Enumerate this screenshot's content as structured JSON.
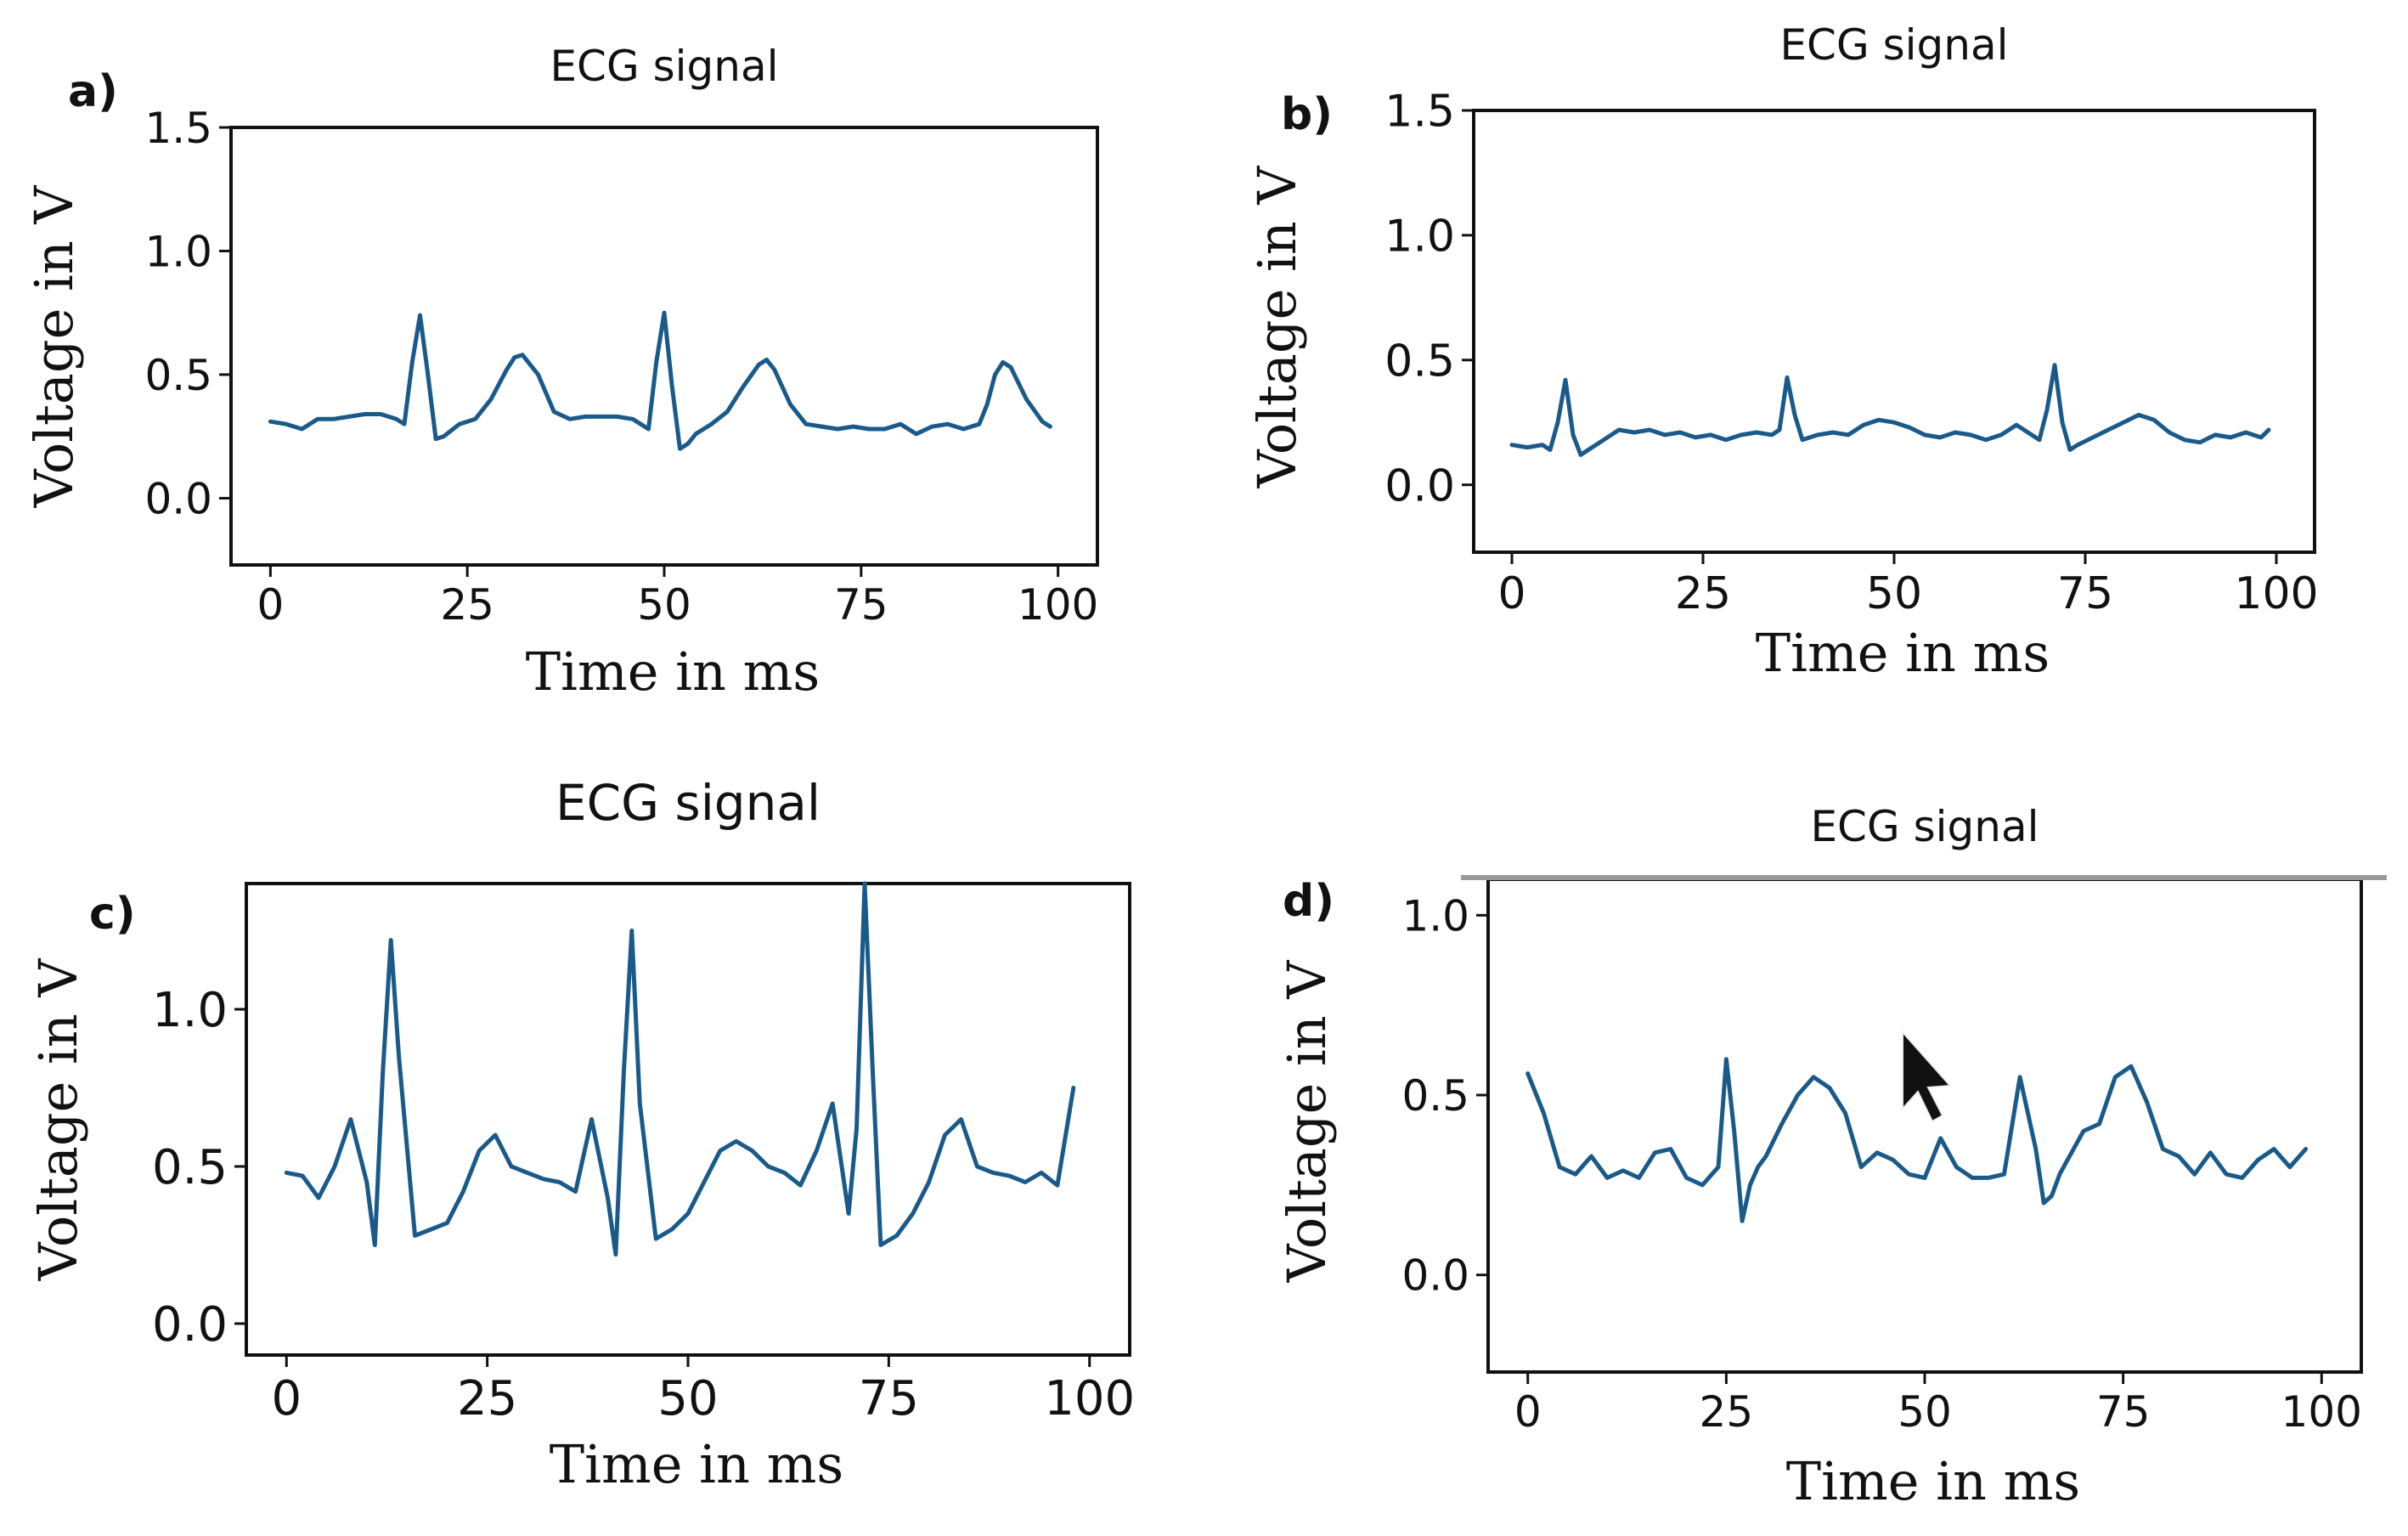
{
  "figure": {
    "background": "#ffffff",
    "line_color": "#1a5a8a"
  },
  "chart_data": [
    {
      "panel": "a)",
      "type": "line",
      "title": "ECG signal",
      "xlabel": "Time in ms",
      "ylabel": "Voltage in V",
      "xlim": [
        -5,
        105
      ],
      "ylim": [
        -0.27,
        1.5
      ],
      "xticks": [
        "0",
        "25",
        "50",
        "75",
        "100"
      ],
      "xtick_values": [
        0,
        25,
        50,
        75,
        100
      ],
      "yticks": [
        "0.0",
        "0.5",
        "1.0",
        "1.5"
      ],
      "ytick_values": [
        0.0,
        0.5,
        1.0,
        1.5
      ],
      "series": [
        {
          "name": "ECG",
          "x": [
            0,
            2,
            4,
            6,
            8,
            10,
            12,
            14,
            16,
            17,
            18,
            19,
            20,
            21,
            22,
            24,
            26,
            28,
            30,
            31,
            32,
            34,
            36,
            38,
            40,
            42,
            44,
            46,
            48,
            49,
            50,
            51,
            52,
            53,
            54,
            56,
            58,
            60,
            62,
            63,
            64,
            66,
            68,
            70,
            72,
            74,
            76,
            78,
            80,
            82,
            84,
            86,
            88,
            90,
            91,
            92,
            93,
            94,
            96,
            98,
            99
          ],
          "y": [
            0.31,
            0.3,
            0.28,
            0.32,
            0.32,
            0.33,
            0.34,
            0.34,
            0.32,
            0.3,
            0.55,
            0.74,
            0.5,
            0.24,
            0.25,
            0.3,
            0.32,
            0.4,
            0.52,
            0.57,
            0.58,
            0.5,
            0.35,
            0.32,
            0.33,
            0.33,
            0.33,
            0.32,
            0.28,
            0.55,
            0.75,
            0.45,
            0.2,
            0.22,
            0.26,
            0.3,
            0.35,
            0.45,
            0.54,
            0.56,
            0.52,
            0.38,
            0.3,
            0.29,
            0.28,
            0.29,
            0.28,
            0.28,
            0.3,
            0.26,
            0.29,
            0.3,
            0.28,
            0.3,
            0.38,
            0.5,
            0.55,
            0.53,
            0.4,
            0.31,
            0.29
          ]
        }
      ]
    },
    {
      "panel": "b)",
      "type": "line",
      "title": "ECG signal",
      "xlabel": "Time in ms",
      "ylabel": "Voltage in V",
      "xlim": [
        -5,
        105
      ],
      "ylim": [
        -0.27,
        1.5
      ],
      "xticks": [
        "0",
        "25",
        "50",
        "75",
        "100"
      ],
      "xtick_values": [
        0,
        25,
        50,
        75,
        100
      ],
      "yticks": [
        "0.0",
        "0.5",
        "1.0",
        "1.5"
      ],
      "ytick_values": [
        0.0,
        0.5,
        1.0,
        1.5
      ],
      "series": [
        {
          "name": "ECG",
          "x": [
            0,
            2,
            4,
            5,
            6,
            7,
            8,
            9,
            10,
            12,
            14,
            16,
            18,
            20,
            22,
            24,
            26,
            28,
            30,
            32,
            34,
            35,
            36,
            37,
            38,
            40,
            42,
            44,
            46,
            48,
            50,
            52,
            54,
            56,
            58,
            60,
            62,
            64,
            66,
            68,
            69,
            70,
            71,
            72,
            73,
            74,
            76,
            78,
            80,
            82,
            84,
            86,
            88,
            90,
            92,
            94,
            96,
            98,
            99
          ],
          "y": [
            0.16,
            0.15,
            0.16,
            0.14,
            0.25,
            0.42,
            0.2,
            0.12,
            0.14,
            0.18,
            0.22,
            0.21,
            0.22,
            0.2,
            0.21,
            0.19,
            0.2,
            0.18,
            0.2,
            0.21,
            0.2,
            0.22,
            0.43,
            0.28,
            0.18,
            0.2,
            0.21,
            0.2,
            0.24,
            0.26,
            0.25,
            0.23,
            0.2,
            0.19,
            0.21,
            0.2,
            0.18,
            0.2,
            0.24,
            0.2,
            0.18,
            0.3,
            0.48,
            0.25,
            0.14,
            0.16,
            0.19,
            0.22,
            0.25,
            0.28,
            0.26,
            0.21,
            0.18,
            0.17,
            0.2,
            0.19,
            0.21,
            0.19,
            0.22
          ]
        }
      ]
    },
    {
      "panel": "c)",
      "type": "line",
      "title": "ECG signal",
      "xlabel": "Time in ms",
      "ylabel": "Voltage in V",
      "xlim": [
        -5,
        105
      ],
      "ylim": [
        -0.1,
        1.4
      ],
      "xticks": [
        "0",
        "25",
        "50",
        "75",
        "100"
      ],
      "xtick_values": [
        0,
        25,
        50,
        75,
        100
      ],
      "yticks": [
        "0.0",
        "0.5",
        "1.0"
      ],
      "ytick_values": [
        0.0,
        0.5,
        1.0
      ],
      "series": [
        {
          "name": "ECG",
          "x": [
            0,
            2,
            4,
            6,
            8,
            10,
            11,
            12,
            13,
            14,
            16,
            18,
            20,
            22,
            24,
            26,
            28,
            30,
            32,
            34,
            36,
            38,
            40,
            41,
            42,
            43,
            44,
            46,
            48,
            50,
            52,
            54,
            56,
            58,
            60,
            62,
            64,
            66,
            68,
            70,
            71,
            72,
            73,
            74,
            76,
            78,
            80,
            82,
            84,
            86,
            88,
            90,
            92,
            94,
            96,
            98
          ],
          "y": [
            0.48,
            0.47,
            0.4,
            0.5,
            0.65,
            0.45,
            0.25,
            0.8,
            1.22,
            0.85,
            0.28,
            0.3,
            0.32,
            0.42,
            0.55,
            0.6,
            0.5,
            0.48,
            0.46,
            0.45,
            0.42,
            0.65,
            0.4,
            0.22,
            0.8,
            1.25,
            0.7,
            0.27,
            0.3,
            0.35,
            0.45,
            0.55,
            0.58,
            0.55,
            0.5,
            0.48,
            0.44,
            0.55,
            0.7,
            0.35,
            0.62,
            1.4,
            0.8,
            0.25,
            0.28,
            0.35,
            0.45,
            0.6,
            0.65,
            0.5,
            0.48,
            0.47,
            0.45,
            0.48,
            0.44,
            0.75
          ]
        }
      ]
    },
    {
      "panel": "d)",
      "type": "line",
      "title": "ECG signal",
      "xlabel": "Time in ms",
      "ylabel": "Voltage in V",
      "xlim": [
        -5,
        105
      ],
      "ylim": [
        -0.27,
        1.1
      ],
      "xticks": [
        "0",
        "25",
        "50",
        "75",
        "100"
      ],
      "xtick_values": [
        0,
        25,
        50,
        75,
        100
      ],
      "yticks": [
        "0.0",
        "0.5",
        "1.0"
      ],
      "ytick_values": [
        0.0,
        0.5,
        1.0
      ],
      "series": [
        {
          "name": "ECG",
          "x": [
            0,
            2,
            4,
            6,
            8,
            10,
            12,
            14,
            16,
            18,
            20,
            22,
            24,
            25,
            26,
            27,
            28,
            29,
            30,
            32,
            34,
            36,
            38,
            40,
            42,
            44,
            46,
            48,
            50,
            52,
            54,
            56,
            58,
            60,
            62,
            64,
            65,
            66,
            67,
            68,
            70,
            72,
            74,
            76,
            78,
            80,
            82,
            84,
            86,
            88,
            90,
            92,
            94,
            96,
            98
          ],
          "y": [
            0.56,
            0.45,
            0.3,
            0.28,
            0.33,
            0.27,
            0.29,
            0.27,
            0.34,
            0.35,
            0.27,
            0.25,
            0.3,
            0.6,
            0.4,
            0.15,
            0.25,
            0.3,
            0.33,
            0.42,
            0.5,
            0.55,
            0.52,
            0.45,
            0.3,
            0.34,
            0.32,
            0.28,
            0.27,
            0.38,
            0.3,
            0.27,
            0.27,
            0.28,
            0.55,
            0.35,
            0.2,
            0.22,
            0.28,
            0.32,
            0.4,
            0.42,
            0.55,
            0.58,
            0.48,
            0.35,
            0.33,
            0.28,
            0.34,
            0.28,
            0.27,
            0.32,
            0.35,
            0.3,
            0.35
          ]
        }
      ]
    }
  ]
}
